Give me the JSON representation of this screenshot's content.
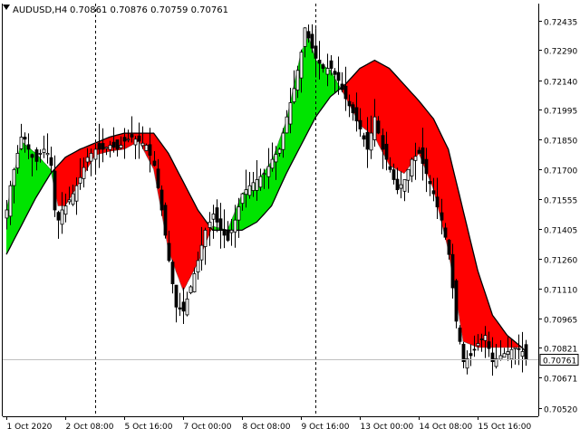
{
  "header": {
    "symbol_timeframe": "AUDUSD,H4",
    "ohlc": "0.70861 0.70876 0.70759 0.70761"
  },
  "colors": {
    "background": "#ffffff",
    "axis": "#000000",
    "grid_vertical": "#000000",
    "bull_cloud": "#00e400",
    "bear_cloud": "#ff0000",
    "cloud_transition": "#1a3ccc",
    "current_price_line": "#c0c0c0",
    "current_price_label_bg": "#ffffff",
    "candle_body_up": "#ffffff",
    "candle_body_down": "#000000",
    "candle_wick": "#000000"
  },
  "chart_data": {
    "type": "candlestick",
    "title": "AUDUSD,H4",
    "y_range": [
      0.7048,
      0.7252
    ],
    "y_ticks": [
      0.7052,
      0.70671,
      0.70821,
      0.70965,
      0.7111,
      0.7126,
      0.71405,
      0.71555,
      0.717,
      0.7185,
      0.71995,
      0.7214,
      0.7229,
      0.72435
    ],
    "y_tick_labels": [
      "0.70520",
      "0.70671",
      "0.70821",
      "0.70965",
      "0.71110",
      "0.71260",
      "0.71405",
      "0.71555",
      "0.71700",
      "0.71850",
      "0.71995",
      "0.72140",
      "0.72290",
      "0.72435"
    ],
    "x_tick_labels": [
      "1 Oct 2020",
      "2 Oct 08:00",
      "5 Oct 16:00",
      "7 Oct 00:00",
      "8 Oct 08:00",
      "9 Oct 16:00",
      "13 Oct 00:00",
      "14 Oct 08:00",
      "15 Oct 16:00"
    ],
    "x_tick_bar_index": [
      0,
      16,
      32,
      48,
      64,
      80,
      96,
      112,
      128
    ],
    "period_separator_bar_index": [
      24,
      84
    ],
    "current_price": 0.70761,
    "current_price_label": "0.70761",
    "bar_count": 142,
    "candle_anchors": [
      [
        0,
        0.715
      ],
      [
        1,
        0.7162
      ],
      [
        2,
        0.717
      ],
      [
        3,
        0.7178
      ],
      [
        4,
        0.7186
      ],
      [
        5,
        0.7185
      ],
      [
        6,
        0.718
      ],
      [
        7,
        0.7176
      ],
      [
        8,
        0.7174
      ],
      [
        9,
        0.7178
      ],
      [
        10,
        0.718
      ],
      [
        11,
        0.7178
      ],
      [
        12,
        0.7172
      ],
      [
        13,
        0.715
      ],
      [
        14,
        0.7145
      ],
      [
        15,
        0.715
      ],
      [
        16,
        0.7152
      ],
      [
        18,
        0.7158
      ],
      [
        20,
        0.7166
      ],
      [
        22,
        0.7176
      ],
      [
        24,
        0.718
      ],
      [
        26,
        0.718
      ],
      [
        28,
        0.7182
      ],
      [
        30,
        0.718
      ],
      [
        32,
        0.7184
      ],
      [
        34,
        0.7186
      ],
      [
        36,
        0.7184
      ],
      [
        38,
        0.7182
      ],
      [
        40,
        0.7172
      ],
      [
        42,
        0.715
      ],
      [
        44,
        0.7125
      ],
      [
        46,
        0.7102
      ],
      [
        48,
        0.71
      ],
      [
        50,
        0.7112
      ],
      [
        52,
        0.7125
      ],
      [
        54,
        0.714
      ],
      [
        56,
        0.7148
      ],
      [
        58,
        0.714
      ],
      [
        60,
        0.7135
      ],
      [
        62,
        0.7145
      ],
      [
        64,
        0.7158
      ],
      [
        66,
        0.7162
      ],
      [
        68,
        0.7165
      ],
      [
        70,
        0.7168
      ],
      [
        72,
        0.7175
      ],
      [
        74,
        0.718
      ],
      [
        76,
        0.7196
      ],
      [
        78,
        0.721
      ],
      [
        80,
        0.7228
      ],
      [
        81,
        0.724
      ],
      [
        82,
        0.7235
      ],
      [
        84,
        0.7225
      ],
      [
        86,
        0.722
      ],
      [
        88,
        0.722
      ],
      [
        90,
        0.7214
      ],
      [
        92,
        0.7205
      ],
      [
        94,
        0.7198
      ],
      [
        96,
        0.719
      ],
      [
        98,
        0.718
      ],
      [
        100,
        0.7196
      ],
      [
        102,
        0.718
      ],
      [
        104,
        0.717
      ],
      [
        106,
        0.716
      ],
      [
        108,
        0.7165
      ],
      [
        110,
        0.7175
      ],
      [
        112,
        0.7178
      ],
      [
        114,
        0.7168
      ],
      [
        116,
        0.7158
      ],
      [
        118,
        0.7145
      ],
      [
        120,
        0.7128
      ],
      [
        122,
        0.7095
      ],
      [
        124,
        0.7075
      ],
      [
        126,
        0.7078
      ],
      [
        128,
        0.7084
      ],
      [
        130,
        0.7088
      ],
      [
        132,
        0.7075
      ],
      [
        134,
        0.7078
      ],
      [
        136,
        0.708
      ],
      [
        138,
        0.7082
      ],
      [
        140,
        0.708
      ],
      [
        141,
        0.7076
      ]
    ],
    "fast_line_anchors": [
      [
        0,
        0.715
      ],
      [
        4,
        0.7184
      ],
      [
        8,
        0.7178
      ],
      [
        12,
        0.717
      ],
      [
        14,
        0.7152
      ],
      [
        16,
        0.7152
      ],
      [
        20,
        0.7164
      ],
      [
        24,
        0.7177
      ],
      [
        28,
        0.7179
      ],
      [
        32,
        0.718
      ],
      [
        36,
        0.7184
      ],
      [
        40,
        0.717
      ],
      [
        44,
        0.713
      ],
      [
        48,
        0.711
      ],
      [
        52,
        0.7124
      ],
      [
        56,
        0.7142
      ],
      [
        60,
        0.714
      ],
      [
        64,
        0.7158
      ],
      [
        68,
        0.7164
      ],
      [
        72,
        0.7174
      ],
      [
        76,
        0.7194
      ],
      [
        80,
        0.7228
      ],
      [
        82,
        0.7236
      ],
      [
        84,
        0.7224
      ],
      [
        88,
        0.7219
      ],
      [
        92,
        0.7206
      ],
      [
        96,
        0.7192
      ],
      [
        100,
        0.7186
      ],
      [
        104,
        0.7172
      ],
      [
        108,
        0.7168
      ],
      [
        112,
        0.7178
      ],
      [
        116,
        0.716
      ],
      [
        120,
        0.713
      ],
      [
        124,
        0.7085
      ],
      [
        128,
        0.7082
      ],
      [
        132,
        0.7082
      ],
      [
        136,
        0.7082
      ],
      [
        140,
        0.7082
      ],
      [
        141,
        0.708
      ]
    ],
    "slow_line_anchors": [
      [
        0,
        0.7128
      ],
      [
        4,
        0.7142
      ],
      [
        8,
        0.7156
      ],
      [
        12,
        0.7168
      ],
      [
        16,
        0.7176
      ],
      [
        20,
        0.718
      ],
      [
        24,
        0.7183
      ],
      [
        28,
        0.7186
      ],
      [
        32,
        0.7188
      ],
      [
        36,
        0.7188
      ],
      [
        40,
        0.7188
      ],
      [
        44,
        0.7178
      ],
      [
        48,
        0.7164
      ],
      [
        52,
        0.715
      ],
      [
        56,
        0.714
      ],
      [
        60,
        0.714
      ],
      [
        64,
        0.714
      ],
      [
        68,
        0.7144
      ],
      [
        72,
        0.7152
      ],
      [
        76,
        0.7168
      ],
      [
        80,
        0.7182
      ],
      [
        84,
        0.7196
      ],
      [
        88,
        0.7206
      ],
      [
        92,
        0.7212
      ],
      [
        96,
        0.722
      ],
      [
        100,
        0.7224
      ],
      [
        104,
        0.722
      ],
      [
        108,
        0.7212
      ],
      [
        112,
        0.7204
      ],
      [
        116,
        0.7195
      ],
      [
        120,
        0.718
      ],
      [
        124,
        0.715
      ],
      [
        128,
        0.712
      ],
      [
        132,
        0.7098
      ],
      [
        136,
        0.7088
      ],
      [
        140,
        0.7082
      ],
      [
        141,
        0.708
      ]
    ]
  }
}
